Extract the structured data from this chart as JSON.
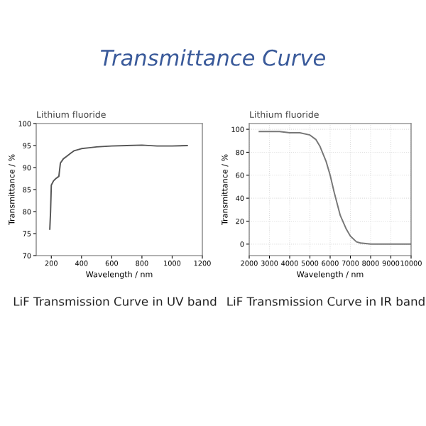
{
  "chart_data": [
    {
      "type": "line",
      "title": "Transmittance Curve",
      "subtitle": "Lithium fluoride",
      "xlabel": "Wavelength / nm",
      "ylabel": "Transmittance / %",
      "annotations": [
        "LiF Transmission Curve in UV band"
      ],
      "x": [
        190,
        195,
        200,
        215,
        230,
        250,
        260,
        280,
        300,
        330,
        350,
        380,
        400,
        450,
        500,
        600,
        700,
        800,
        900,
        1000,
        1100
      ],
      "series": [
        {
          "color": "#555555",
          "values": [
            76,
            80,
            86,
            87,
            87.5,
            88,
            91,
            92,
            92.5,
            93.3,
            93.8,
            94.1,
            94.3,
            94.5,
            94.7,
            94.9,
            95,
            95.1,
            94.9,
            94.9,
            95
          ]
        }
      ],
      "xlim": [
        100,
        1200
      ],
      "xticks": [
        200,
        400,
        600,
        800,
        1000,
        1200
      ],
      "ylim": [
        70,
        100
      ],
      "yticks": [
        70,
        75,
        80,
        85,
        90,
        95,
        100
      ],
      "grid": false
    },
    {
      "type": "line",
      "subtitle": "Lithium fluoride",
      "xlabel": "Wavelength / nm",
      "ylabel": "Transmittance / %",
      "annotations": [
        "LiF Transmission Curve in IR band"
      ],
      "x": [
        2500,
        3000,
        3500,
        4000,
        4500,
        5000,
        5300,
        5500,
        5800,
        6000,
        6200,
        6500,
        6800,
        7000,
        7300,
        7500,
        8000,
        9000,
        10000
      ],
      "series": [
        {
          "color": "#777777",
          "values": [
            98,
            98,
            98,
            97,
            97,
            95,
            91,
            85,
            72,
            60,
            45,
            25,
            13,
            7,
            2,
            1,
            0,
            0,
            0
          ]
        }
      ],
      "xlim": [
        2000,
        10000
      ],
      "xticks": [
        2000,
        3000,
        4000,
        5000,
        6000,
        7000,
        8000,
        9000,
        10000
      ],
      "ylim": [
        -10,
        105
      ],
      "yticks": [
        0,
        20,
        40,
        60,
        80,
        100
      ],
      "grid": true
    }
  ]
}
